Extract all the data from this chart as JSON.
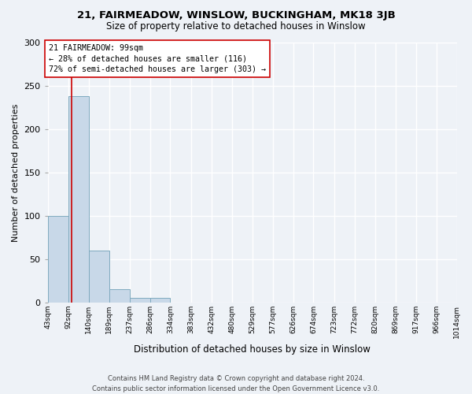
{
  "title": "21, FAIRMEADOW, WINSLOW, BUCKINGHAM, MK18 3JB",
  "subtitle": "Size of property relative to detached houses in Winslow",
  "xlabel": "Distribution of detached houses by size in Winslow",
  "ylabel": "Number of detached properties",
  "bar_color": "#c8d8e8",
  "bar_edge_color": "#7faabf",
  "bins": [
    43,
    92,
    140,
    189,
    237,
    286,
    334,
    383,
    432,
    480,
    529,
    577,
    626,
    674,
    723,
    772,
    820,
    869,
    917,
    966,
    1014
  ],
  "bin_labels": [
    "43sqm",
    "92sqm",
    "140sqm",
    "189sqm",
    "237sqm",
    "286sqm",
    "334sqm",
    "383sqm",
    "432sqm",
    "480sqm",
    "529sqm",
    "577sqm",
    "626sqm",
    "674sqm",
    "723sqm",
    "772sqm",
    "820sqm",
    "869sqm",
    "917sqm",
    "966sqm",
    "1014sqm"
  ],
  "values": [
    100,
    238,
    60,
    15,
    5,
    5,
    0,
    0,
    0,
    0,
    0,
    0,
    0,
    0,
    0,
    0,
    0,
    0,
    0,
    0
  ],
  "property_line_x": 99,
  "property_line_color": "#cc0000",
  "annotation_text": "21 FAIRMEADOW: 99sqm\n← 28% of detached houses are smaller (116)\n72% of semi-detached houses are larger (303) →",
  "annotation_box_color": "#ffffff",
  "annotation_box_edge": "#cc0000",
  "ylim": [
    0,
    300
  ],
  "yticks": [
    0,
    50,
    100,
    150,
    200,
    250,
    300
  ],
  "footnote": "Contains HM Land Registry data © Crown copyright and database right 2024.\nContains public sector information licensed under the Open Government Licence v3.0.",
  "background_color": "#eef2f7",
  "grid_color": "#ffffff"
}
